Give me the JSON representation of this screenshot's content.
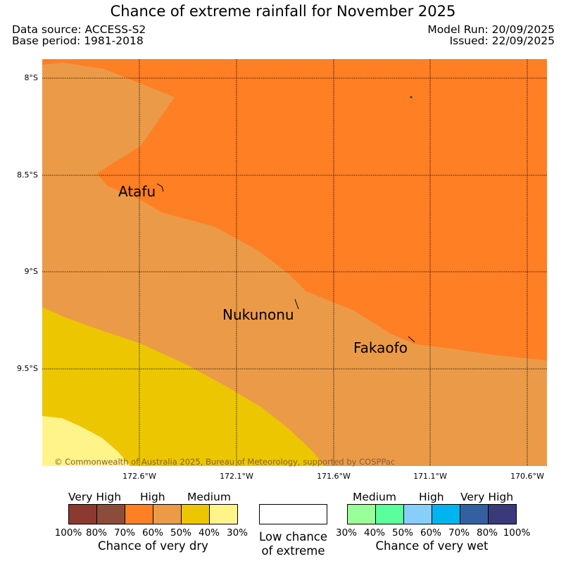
{
  "header": {
    "title": "Chance of extreme rainfall for November 2025",
    "data_source": "Data source: ACCESS-S2",
    "base_period": "Base period: 1981-2018",
    "model_run": "Model Run: 20/09/2025",
    "issued": "Issued: 22/09/2025"
  },
  "map": {
    "lat_labels": [
      "8°S",
      "8.5°S",
      "9°S",
      "9.5°S"
    ],
    "lon_labels": [
      "172.6°W",
      "172.1°W",
      "171.6°W",
      "171.1°W",
      "170.6°W"
    ],
    "islands": [
      "Atafu",
      "Nukunonu",
      "Fakaofo"
    ],
    "copyright": "© Commonwealth of Australia 2025, Bureau of Meteorology, supported by COSPPac",
    "zone_colors": {
      "high_dry": "#ff7f24",
      "medium_high_dry": "#eb9b47",
      "medium_dry": "#ecc600",
      "low_medium_dry": "#fff48a"
    }
  },
  "legend": {
    "dry": {
      "categories": [
        "Very High",
        "High",
        "Medium"
      ],
      "swatch_colors": [
        "#8b3a2f",
        "#8b4c3a",
        "#ff7f24",
        "#eb9b47",
        "#ecc600",
        "#fff48a"
      ],
      "ticks": [
        "100%",
        "80%",
        "70%",
        "60%",
        "50%",
        "40%",
        "30%"
      ],
      "title": "Chance of very dry"
    },
    "low": {
      "line1": "Low chance",
      "line2": "of extreme",
      "color": "#ffffff"
    },
    "wet": {
      "categories": [
        "Medium",
        "High",
        "Very High"
      ],
      "swatch_colors": [
        "#99ff99",
        "#5aff9c",
        "#87cefa",
        "#00b4f0",
        "#3560a0",
        "#3a3a7a"
      ],
      "ticks": [
        "30%",
        "40%",
        "50%",
        "60%",
        "70%",
        "80%",
        "100%"
      ],
      "title": "Chance of very wet"
    }
  }
}
